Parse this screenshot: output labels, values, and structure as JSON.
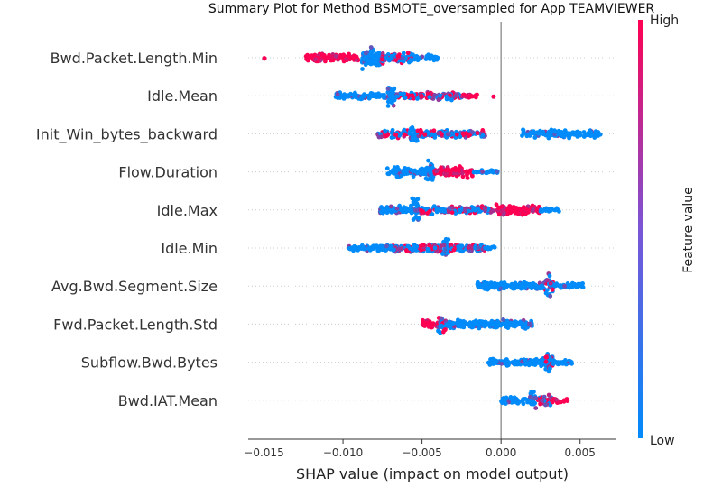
{
  "colors": {
    "low": "#008bfb",
    "high": "#ff0052",
    "grid": "#cccccc",
    "zero": "#999999"
  },
  "chart_data": {
    "type": "scatter",
    "subtype": "shap-beeswarm",
    "title": "Summary Plot for Method BSMOTE_oversampled for App TEAMVIEWER",
    "xlabel": "SHAP value (impact on model output)",
    "xlim": [
      -0.016,
      0.0073
    ],
    "xticks": [
      -0.015,
      -0.01,
      -0.005,
      0.0,
      0.005
    ],
    "xtick_labels": [
      "−0.015",
      "−0.010",
      "−0.005",
      "0.000",
      "0.005"
    ],
    "colorbar": {
      "label": "Feature value",
      "high_label": "High",
      "low_label": "Low"
    },
    "features": [
      {
        "name": "Bwd.Packet.Length.Min",
        "segments": [
          {
            "from": -0.015,
            "to": -0.0148,
            "density": 0.05,
            "color": "high"
          },
          {
            "from": -0.0125,
            "to": -0.009,
            "density": 0.35,
            "color": "high"
          },
          {
            "from": -0.0088,
            "to": -0.0076,
            "density": 1.0,
            "color": "low"
          },
          {
            "from": -0.0076,
            "to": -0.0055,
            "density": 0.45,
            "color": "mixed"
          },
          {
            "from": -0.0055,
            "to": -0.004,
            "density": 0.2,
            "color": "low"
          }
        ]
      },
      {
        "name": "Idle.Mean",
        "segments": [
          {
            "from": -0.0105,
            "to": -0.0072,
            "density": 0.25,
            "color": "low"
          },
          {
            "from": -0.0072,
            "to": -0.0067,
            "density": 1.0,
            "color": "low"
          },
          {
            "from": -0.0067,
            "to": -0.0025,
            "density": 0.35,
            "color": "mixed"
          },
          {
            "from": -0.0025,
            "to": -0.0015,
            "density": 0.1,
            "color": "high"
          },
          {
            "from": -0.0005,
            "to": -0.0004,
            "density": 0.05,
            "color": "high"
          }
        ]
      },
      {
        "name": "Init_Win_bytes_backward",
        "segments": [
          {
            "from": -0.0078,
            "to": -0.0058,
            "density": 0.35,
            "color": "mixed"
          },
          {
            "from": -0.0058,
            "to": -0.0053,
            "density": 1.0,
            "color": "low"
          },
          {
            "from": -0.0053,
            "to": -0.001,
            "density": 0.3,
            "color": "mixed"
          },
          {
            "from": 0.0013,
            "to": 0.0063,
            "density": 0.3,
            "color": "low"
          }
        ]
      },
      {
        "name": "Flow.Duration",
        "segments": [
          {
            "from": -0.0072,
            "to": -0.0048,
            "density": 0.35,
            "color": "low"
          },
          {
            "from": -0.0048,
            "to": -0.0042,
            "density": 1.0,
            "color": "low"
          },
          {
            "from": -0.0042,
            "to": -0.0018,
            "density": 0.45,
            "color": "high"
          },
          {
            "from": -0.0018,
            "to": -0.0002,
            "density": 0.1,
            "color": "low"
          }
        ]
      },
      {
        "name": "Idle.Max",
        "segments": [
          {
            "from": -0.0077,
            "to": -0.0057,
            "density": 0.3,
            "color": "low"
          },
          {
            "from": -0.0057,
            "to": -0.0052,
            "density": 1.0,
            "color": "low"
          },
          {
            "from": -0.0052,
            "to": -0.0005,
            "density": 0.3,
            "color": "mixed"
          },
          {
            "from": -0.0003,
            "to": 0.0025,
            "density": 0.45,
            "color": "high"
          },
          {
            "from": 0.0025,
            "to": 0.0038,
            "density": 0.1,
            "color": "low"
          }
        ]
      },
      {
        "name": "Idle.Min",
        "segments": [
          {
            "from": -0.0097,
            "to": -0.007,
            "density": 0.25,
            "color": "low"
          },
          {
            "from": -0.007,
            "to": -0.0037,
            "density": 0.35,
            "color": "mixed"
          },
          {
            "from": -0.0037,
            "to": -0.0033,
            "density": 1.0,
            "color": "low"
          },
          {
            "from": -0.0033,
            "to": -0.001,
            "density": 0.35,
            "color": "mixed"
          },
          {
            "from": -0.001,
            "to": -0.0004,
            "density": 0.1,
            "color": "low"
          }
        ]
      },
      {
        "name": "Avg.Bwd.Segment.Size",
        "segments": [
          {
            "from": -0.0015,
            "to": 0.0028,
            "density": 0.3,
            "color": "low"
          },
          {
            "from": 0.0028,
            "to": 0.0033,
            "density": 1.0,
            "color": "mixed"
          },
          {
            "from": 0.0033,
            "to": 0.0052,
            "density": 0.2,
            "color": "low"
          }
        ]
      },
      {
        "name": "Fwd.Packet.Length.Std",
        "segments": [
          {
            "from": -0.005,
            "to": -0.004,
            "density": 0.3,
            "color": "high"
          },
          {
            "from": -0.004,
            "to": -0.0035,
            "density": 1.0,
            "color": "mixed"
          },
          {
            "from": -0.0035,
            "to": 0.002,
            "density": 0.35,
            "color": "low"
          }
        ]
      },
      {
        "name": "Subflow.Bwd.Bytes",
        "segments": [
          {
            "from": -0.0008,
            "to": 0.0028,
            "density": 0.3,
            "color": "low"
          },
          {
            "from": 0.0028,
            "to": 0.0033,
            "density": 1.0,
            "color": "mixed"
          },
          {
            "from": 0.0033,
            "to": 0.0045,
            "density": 0.2,
            "color": "low"
          }
        ]
      },
      {
        "name": "Bwd.IAT.Mean",
        "segments": [
          {
            "from": 0.0,
            "to": 0.0018,
            "density": 0.3,
            "color": "low"
          },
          {
            "from": 0.0018,
            "to": 0.0022,
            "density": 1.0,
            "color": "low"
          },
          {
            "from": 0.0022,
            "to": 0.0032,
            "density": 0.45,
            "color": "mixed"
          },
          {
            "from": 0.0032,
            "to": 0.0042,
            "density": 0.2,
            "color": "high"
          }
        ]
      }
    ]
  }
}
